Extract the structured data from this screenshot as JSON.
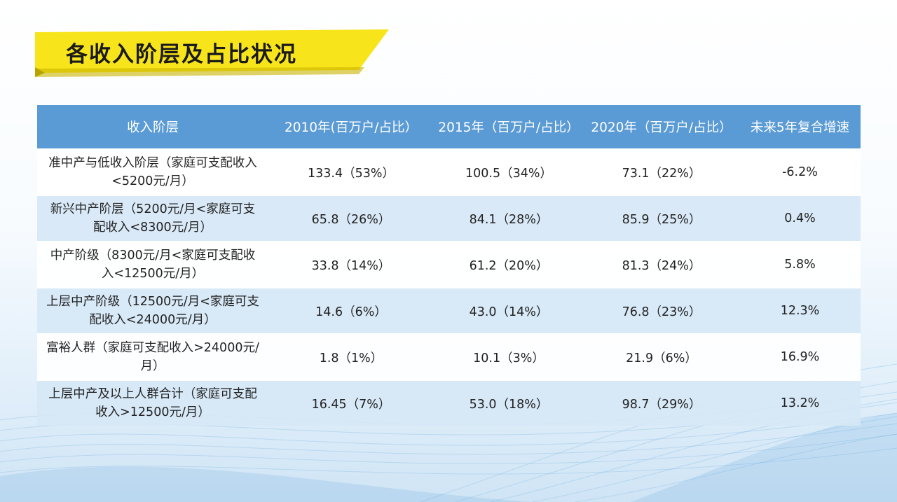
{
  "title": "各收入阶层及占比状况",
  "colors": {
    "banner_yellow": "#f7e41a",
    "banner_shadow": "#c9b400",
    "header_blue": "#5b9bd5",
    "row_alt": "#d6e7f6"
  },
  "table": {
    "headers": [
      "收入阶层",
      "2010年(百万户/占比）",
      "2015年（百万户/占比）",
      "2020年（百万户/占比）",
      "未来5年复合增速"
    ],
    "rows": [
      [
        "准中产与低收入阶层（家庭可支配收入<5200元/月）",
        "133.4（53%）",
        "100.5（34%）",
        "73.1（22%）",
        "-6.2%"
      ],
      [
        "新兴中产阶层（5200元/月<家庭可支配收入<8300元/月）",
        "65.8（26%）",
        "84.1（28%）",
        "85.9（25%）",
        "0.4%"
      ],
      [
        "中产阶级（8300元/月<家庭可支配收入<12500元/月）",
        "33.8（14%）",
        "61.2（20%）",
        "81.3（24%）",
        "5.8%"
      ],
      [
        "上层中产阶级（12500元/月<家庭可支配收入<24000元/月）",
        "14.6（6%）",
        "43.0（14%）",
        "76.8（23%）",
        "12.3%"
      ],
      [
        "富裕人群（家庭可支配收入>24000元/月）",
        "1.8（1%）",
        "10.1（3%）",
        "21.9（6%）",
        "16.9%"
      ],
      [
        "上层中产及以上人群合计（家庭可支配收入>12500元/月）",
        "16.45（7%）",
        "53.0（18%）",
        "98.7（29%）",
        "13.2%"
      ]
    ]
  }
}
